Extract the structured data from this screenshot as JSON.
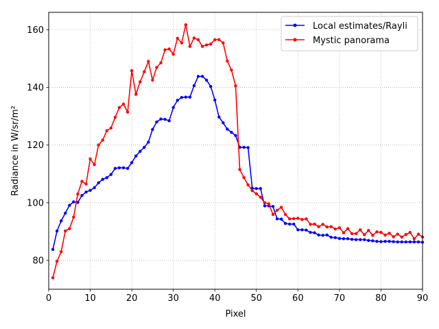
{
  "chart_data": {
    "type": "line",
    "title": "",
    "xlabel": "Pixel",
    "ylabel": "Radiance in W/sr/m²",
    "xlim": [
      0,
      90
    ],
    "ylim": [
      70,
      166
    ],
    "xticks": [
      0,
      10,
      20,
      30,
      40,
      50,
      60,
      70,
      80,
      90
    ],
    "yticks": [
      80,
      100,
      120,
      140,
      160
    ],
    "grid": true,
    "legend_position": "top-right",
    "x": [
      1,
      2,
      3,
      4,
      5,
      6,
      7,
      8,
      9,
      10,
      11,
      12,
      13,
      14,
      15,
      16,
      17,
      18,
      19,
      20,
      21,
      22,
      23,
      24,
      25,
      26,
      27,
      28,
      29,
      30,
      31,
      32,
      33,
      34,
      35,
      36,
      37,
      38,
      39,
      40,
      41,
      42,
      43,
      44,
      45,
      46,
      47,
      48,
      49,
      50,
      51,
      52,
      53,
      54,
      55,
      56,
      57,
      58,
      59,
      60,
      61,
      62,
      63,
      64,
      65,
      66,
      67,
      68,
      69,
      70,
      71,
      72,
      73,
      74,
      75,
      76,
      77,
      78,
      79,
      80,
      81,
      82,
      83,
      84,
      85,
      86,
      87,
      88,
      89,
      90
    ],
    "series": [
      {
        "name": "Local estimates/Rayli",
        "color": "#0000ff",
        "values": [
          83.8,
          90.2,
          93.7,
          96.4,
          99.1,
          100.3,
          100.1,
          102.5,
          103.7,
          104.3,
          105.2,
          106.9,
          108.1,
          108.7,
          109.8,
          111.9,
          112.1,
          112.1,
          111.9,
          113.9,
          116.2,
          117.8,
          119.2,
          121.0,
          125.4,
          128.0,
          129.0,
          128.9,
          128.4,
          133.0,
          135.5,
          136.5,
          136.6,
          136.6,
          140.6,
          143.8,
          143.8,
          142.5,
          140.3,
          135.6,
          129.7,
          127.7,
          125.5,
          124.4,
          123.3,
          119.2,
          119.2,
          119.1,
          105.0,
          104.9,
          104.9,
          98.9,
          98.9,
          98.7,
          94.4,
          94.3,
          92.8,
          92.6,
          92.6,
          90.6,
          90.6,
          90.5,
          89.7,
          89.6,
          88.8,
          88.7,
          88.8,
          88.0,
          87.9,
          87.6,
          87.5,
          87.5,
          87.3,
          87.2,
          87.2,
          87.2,
          86.9,
          86.8,
          86.6,
          86.5,
          86.6,
          86.6,
          86.5,
          86.4,
          86.4,
          86.4,
          86.4,
          86.4,
          86.4,
          86.3
        ]
      },
      {
        "name": "Mystic panorama",
        "color": "#ff0000",
        "values": [
          74.0,
          79.7,
          83.0,
          90.2,
          91.0,
          95.0,
          103.0,
          107.4,
          106.5,
          115.2,
          113.2,
          120.0,
          121.7,
          125.0,
          125.9,
          129.6,
          133.0,
          134.2,
          131.4,
          145.8,
          137.6,
          141.9,
          145.4,
          149.0,
          142.5,
          146.9,
          148.5,
          153.0,
          153.3,
          151.5,
          157.0,
          155.4,
          161.7,
          154.2,
          157.1,
          156.5,
          154.2,
          154.7,
          155.0,
          156.5,
          156.5,
          155.4,
          149.1,
          146.0,
          140.5,
          111.5,
          108.7,
          106.2,
          104.2,
          103.1,
          101.9,
          100.0,
          99.6,
          95.9,
          97.4,
          98.4,
          95.9,
          94.4,
          94.5,
          94.6,
          94.2,
          94.4,
          92.5,
          92.6,
          91.7,
          92.5,
          91.6,
          91.7,
          90.9,
          91.3,
          89.6,
          91.0,
          89.3,
          89.3,
          90.6,
          88.9,
          90.4,
          88.7,
          89.9,
          89.7,
          88.8,
          89.4,
          88.2,
          89.1,
          88.1,
          89.0,
          89.7,
          87.5,
          89.1,
          88.1
        ]
      }
    ]
  }
}
